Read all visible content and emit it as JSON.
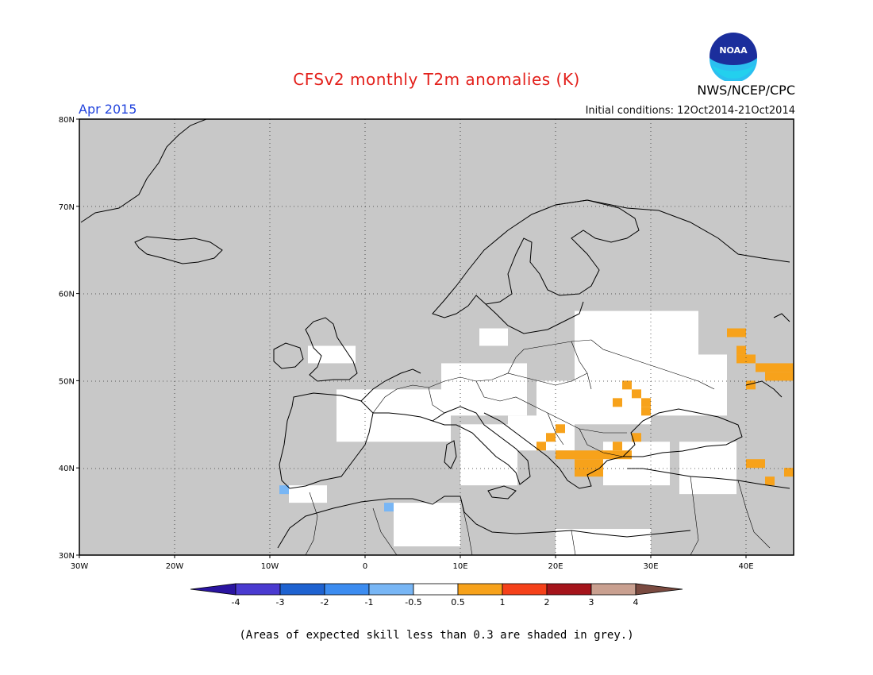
{
  "title": "CFSv2 monthly T2m anomalies (K)",
  "month": "Apr 2015",
  "initial_conditions": "Initial conditions: 12Oct2014-21Oct2014",
  "agency": "NWS/NCEP/CPC",
  "logo": {
    "icon": "noaa-logo-icon",
    "text": "NOAA"
  },
  "footnote": "(Areas of expected skill less than 0.3 are shaded in grey.)",
  "map": {
    "lon_range": [
      -30,
      45
    ],
    "lat_range": [
      30,
      80
    ],
    "lat_ticks": [
      {
        "value": 80,
        "label": "80N"
      },
      {
        "value": 70,
        "label": "70N"
      },
      {
        "value": 60,
        "label": "60N"
      },
      {
        "value": 50,
        "label": "50N"
      },
      {
        "value": 40,
        "label": "40N"
      },
      {
        "value": 30,
        "label": "30N"
      }
    ],
    "lon_ticks": [
      {
        "value": -30,
        "label": "30W"
      },
      {
        "value": -20,
        "label": "20W"
      },
      {
        "value": -10,
        "label": "10W"
      },
      {
        "value": 0,
        "label": "0"
      },
      {
        "value": 10,
        "label": "10E"
      },
      {
        "value": 20,
        "label": "20E"
      },
      {
        "value": 30,
        "label": "30E"
      },
      {
        "value": 40,
        "label": "40E"
      }
    ],
    "colors": {
      "low_skill_grey": "#c8c8c8",
      "neutral": "#ffffff",
      "warm_0_5_1": "#f7a21b",
      "cool_m1_m0_5": "#78b6f5"
    },
    "white_regions": [
      {
        "lon": [
          -3,
          9
        ],
        "lat": [
          43,
          49
        ]
      },
      {
        "lon": [
          8,
          17
        ],
        "lat": [
          46,
          52
        ]
      },
      {
        "lon": [
          15,
          22
        ],
        "lat": [
          42,
          46
        ]
      },
      {
        "lon": [
          18,
          30
        ],
        "lat": [
          45,
          50
        ]
      },
      {
        "lon": [
          22,
          35
        ],
        "lat": [
          50,
          58
        ]
      },
      {
        "lon": [
          27,
          38
        ],
        "lat": [
          46,
          53
        ]
      },
      {
        "lon": [
          10,
          16
        ],
        "lat": [
          38,
          45
        ]
      },
      {
        "lon": [
          3,
          10
        ],
        "lat": [
          31,
          36
        ]
      },
      {
        "lon": [
          20,
          30
        ],
        "lat": [
          30,
          33
        ]
      },
      {
        "lon": [
          25,
          32
        ],
        "lat": [
          38,
          43
        ]
      },
      {
        "lon": [
          33,
          39
        ],
        "lat": [
          37,
          43
        ]
      },
      {
        "lon": [
          -6,
          -1
        ],
        "lat": [
          52,
          54
        ]
      },
      {
        "lon": [
          -8,
          -4
        ],
        "lat": [
          36,
          38
        ]
      },
      {
        "lon": [
          12,
          15
        ],
        "lat": [
          54,
          56
        ]
      }
    ],
    "warm_cells": [
      {
        "lon": 27,
        "lat": 49
      },
      {
        "lon": 28,
        "lat": 48
      },
      {
        "lon": 29,
        "lat": 47
      },
      {
        "lon": 29,
        "lat": 46
      },
      {
        "lon": 26,
        "lat": 47
      },
      {
        "lon": 20,
        "lat": 44
      },
      {
        "lon": 19,
        "lat": 43
      },
      {
        "lon": 18,
        "lat": 42
      },
      {
        "lon": 20,
        "lat": 41
      },
      {
        "lon": 21,
        "lat": 41
      },
      {
        "lon": 22,
        "lat": 41
      },
      {
        "lon": 23,
        "lat": 41
      },
      {
        "lon": 24,
        "lat": 41
      },
      {
        "lon": 25,
        "lat": 41
      },
      {
        "lon": 26,
        "lat": 41
      },
      {
        "lon": 27,
        "lat": 41
      },
      {
        "lon": 22,
        "lat": 40
      },
      {
        "lon": 23,
        "lat": 40
      },
      {
        "lon": 24,
        "lat": 40
      },
      {
        "lon": 23,
        "lat": 39
      },
      {
        "lon": 24,
        "lat": 39
      },
      {
        "lon": 22,
        "lat": 39
      },
      {
        "lon": 26,
        "lat": 42
      },
      {
        "lon": 28,
        "lat": 43
      },
      {
        "lon": 38,
        "lat": 55
      },
      {
        "lon": 39,
        "lat": 55
      },
      {
        "lon": 39,
        "lat": 53
      },
      {
        "lon": 40,
        "lat": 52
      },
      {
        "lon": 39,
        "lat": 52
      },
      {
        "lon": 41,
        "lat": 51
      },
      {
        "lon": 42,
        "lat": 51
      },
      {
        "lon": 43,
        "lat": 51
      },
      {
        "lon": 44,
        "lat": 51
      },
      {
        "lon": 42,
        "lat": 50
      },
      {
        "lon": 43,
        "lat": 50
      },
      {
        "lon": 44,
        "lat": 50
      },
      {
        "lon": 40,
        "lat": 49
      },
      {
        "lon": 40,
        "lat": 40
      },
      {
        "lon": 41,
        "lat": 40
      },
      {
        "lon": 42,
        "lat": 38
      },
      {
        "lon": 44,
        "lat": 39
      }
    ],
    "cool_cells": [
      {
        "lon": -9,
        "lat": 37
      },
      {
        "lon": 2,
        "lat": 35
      }
    ]
  },
  "colorbar": {
    "boundaries": [
      "-4",
      "-3",
      "-2",
      "-1",
      "-0.5",
      "0.5",
      "1",
      "2",
      "3",
      "4"
    ],
    "colors": [
      "#2a14a0",
      "#4a3ad0",
      "#1e62d0",
      "#3c8cf0",
      "#78b6f5",
      "#ffffff",
      "#f7a21b",
      "#f5411a",
      "#a5141b",
      "#c9a090",
      "#7a4a40"
    ]
  }
}
